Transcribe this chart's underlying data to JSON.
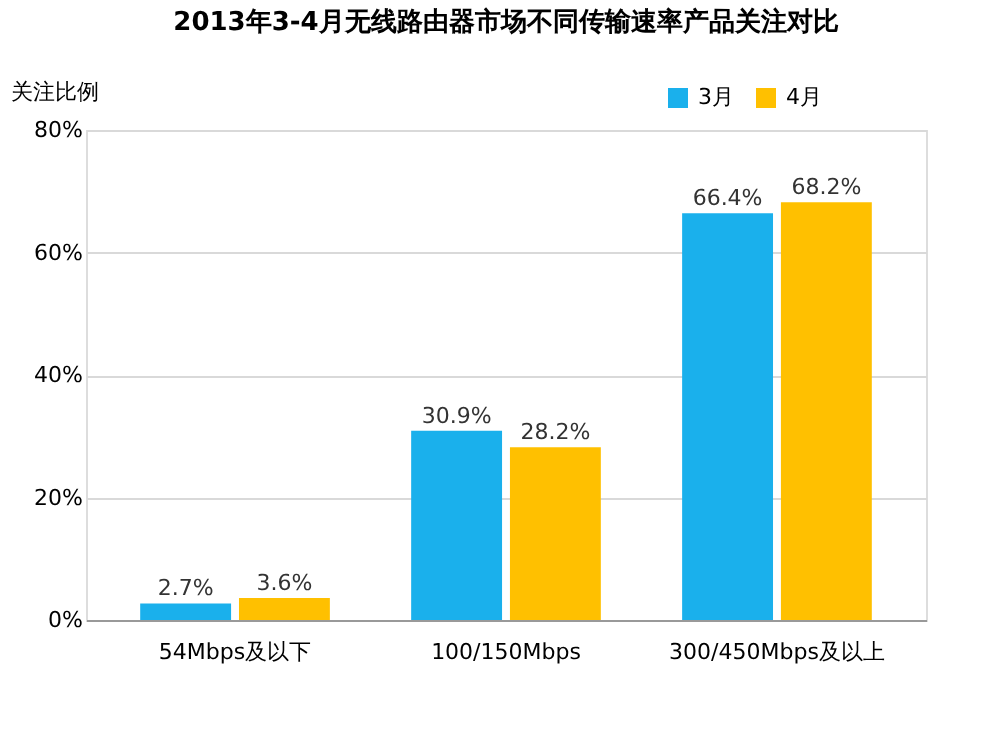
{
  "chart_data": {
    "type": "bar",
    "title": "2013年3-4月无线路由器市场不同传输速率产品关注对比",
    "ylabel": "关注比例",
    "categories": [
      "54Mbps及以下",
      "100/150Mbps",
      "300/450Mbps及以上"
    ],
    "series": [
      {
        "name": "3月",
        "color": "#1ab0ec",
        "values": [
          2.7,
          30.9,
          66.4
        ],
        "value_labels": [
          "2.7%",
          "30.9%",
          "66.4%"
        ]
      },
      {
        "name": "4月",
        "color": "#ffc000",
        "values": [
          3.6,
          28.2,
          68.2
        ],
        "value_labels": [
          "3.6%",
          "28.2%",
          "68.2%"
        ]
      }
    ],
    "ylim": [
      0,
      80
    ],
    "yticks": [
      {
        "value": 0,
        "label": "0%"
      },
      {
        "value": 20,
        "label": "20%"
      },
      {
        "value": 40,
        "label": "40%"
      },
      {
        "value": 60,
        "label": "60%"
      },
      {
        "value": 80,
        "label": "80%"
      }
    ],
    "grid": "y",
    "legend": "top right"
  }
}
